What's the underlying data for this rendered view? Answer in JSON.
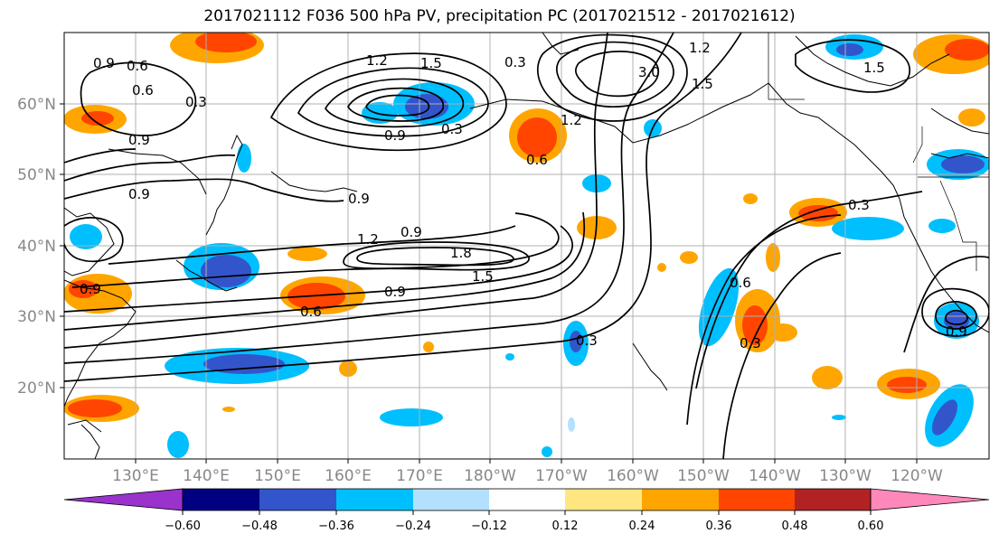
{
  "title": "2017021112 F036 500 hPa PV, precipitation PC (2017021512 - 2017021612)",
  "longitude_labels": [
    "130°E",
    "140°E",
    "150°E",
    "160°E",
    "170°E",
    "180°W",
    "170°W",
    "160°W",
    "150°W",
    "140°W",
    "130°W",
    "120°W"
  ],
  "latitude_labels": [
    "60°N",
    "50°N",
    "40°N",
    "30°N",
    "20°N"
  ],
  "colorbar": {
    "tick_labels": [
      "−0.60",
      "−0.48",
      "−0.36",
      "−0.24",
      "−0.12",
      "0.12",
      "0.24",
      "0.36",
      "0.48",
      "0.60"
    ],
    "colors": [
      "#9933cc",
      "#000080",
      "#3355cc",
      "#00bfff",
      "#b3e0ff",
      "#ffffff",
      "#ffe680",
      "#ffa500",
      "#ff4500",
      "#b22222",
      "#ff88bb"
    ]
  },
  "contour_labels": [
    "0.9",
    "0.6",
    "0.3",
    "0.9",
    "1.2",
    "1.5",
    "0.9",
    "0.3",
    "0.3",
    "1.2",
    "3.0",
    "1.5",
    "1.5",
    "1.2",
    "0.6",
    "0.9",
    "1.2",
    "0.9",
    "1.8",
    "1.5",
    "0.9",
    "0.6",
    "0.9",
    "0.9",
    "0.3",
    "0.3",
    "0.6",
    "0.3",
    "0.6",
    "0.9"
  ],
  "colors": {
    "contour": "#000000",
    "grid": "#b0b0b0",
    "coast": "#000000"
  }
}
